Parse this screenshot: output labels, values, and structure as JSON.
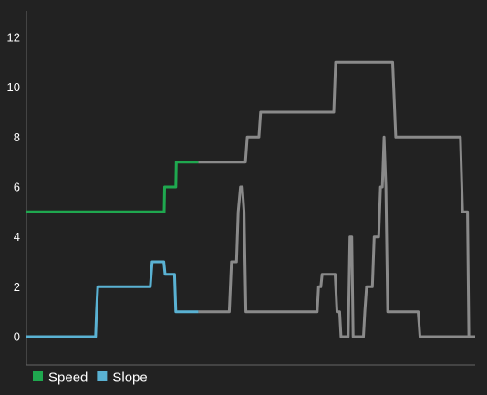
{
  "chart_data": {
    "type": "line",
    "xlim": [
      0,
      100
    ],
    "ylim": [
      0,
      12
    ],
    "yticks": [
      "0",
      "2",
      "4",
      "6",
      "8",
      "10",
      "12"
    ],
    "grid": false,
    "legend_position": "bottom-left",
    "inactive_color": "#8a8a8a",
    "series": [
      {
        "name": "Speed",
        "color": "#1fa84f",
        "highlight_end": 38.3,
        "points": [
          [
            0,
            5
          ],
          [
            30.7,
            5
          ],
          [
            30.8,
            6
          ],
          [
            33.3,
            6
          ],
          [
            33.4,
            7
          ],
          [
            38.3,
            7
          ],
          [
            48.8,
            7
          ],
          [
            49.2,
            8
          ],
          [
            51.8,
            8
          ],
          [
            52.2,
            9
          ],
          [
            68.5,
            9
          ],
          [
            68.9,
            11
          ],
          [
            81.6,
            11
          ],
          [
            82.3,
            8
          ],
          [
            96.7,
            8
          ],
          [
            97.2,
            5
          ],
          [
            98.3,
            5
          ],
          [
            98.6,
            0
          ],
          [
            100,
            0
          ]
        ]
      },
      {
        "name": "Slope",
        "color": "#5ab2d3",
        "highlight_end": 38.3,
        "points": [
          [
            0,
            0
          ],
          [
            15.4,
            0
          ],
          [
            15.6,
            1
          ],
          [
            15.9,
            2
          ],
          [
            27.6,
            2
          ],
          [
            28.0,
            3
          ],
          [
            30.6,
            3
          ],
          [
            30.9,
            2.5
          ],
          [
            33.0,
            2.5
          ],
          [
            33.3,
            1
          ],
          [
            38.3,
            1
          ],
          [
            45.2,
            1
          ],
          [
            45.7,
            3
          ],
          [
            46.8,
            3
          ],
          [
            47.2,
            5
          ],
          [
            47.7,
            6
          ],
          [
            48.1,
            6
          ],
          [
            48.5,
            5
          ],
          [
            48.9,
            1
          ],
          [
            64.8,
            1
          ],
          [
            65.1,
            2
          ],
          [
            65.6,
            2
          ],
          [
            65.9,
            2.5
          ],
          [
            68.8,
            2.5
          ],
          [
            69.2,
            1
          ],
          [
            69.8,
            1
          ],
          [
            70.1,
            0
          ],
          [
            71.7,
            0
          ],
          [
            72.1,
            4
          ],
          [
            72.5,
            4
          ],
          [
            72.8,
            0
          ],
          [
            75.1,
            0
          ],
          [
            75.4,
            1
          ],
          [
            75.8,
            2
          ],
          [
            77.1,
            2
          ],
          [
            77.5,
            4
          ],
          [
            78.5,
            4
          ],
          [
            78.9,
            6
          ],
          [
            79.3,
            6
          ],
          [
            79.7,
            8
          ],
          [
            80.1,
            6
          ],
          [
            80.5,
            1
          ],
          [
            87.3,
            1
          ],
          [
            87.7,
            0
          ],
          [
            100,
            0
          ]
        ]
      }
    ]
  }
}
